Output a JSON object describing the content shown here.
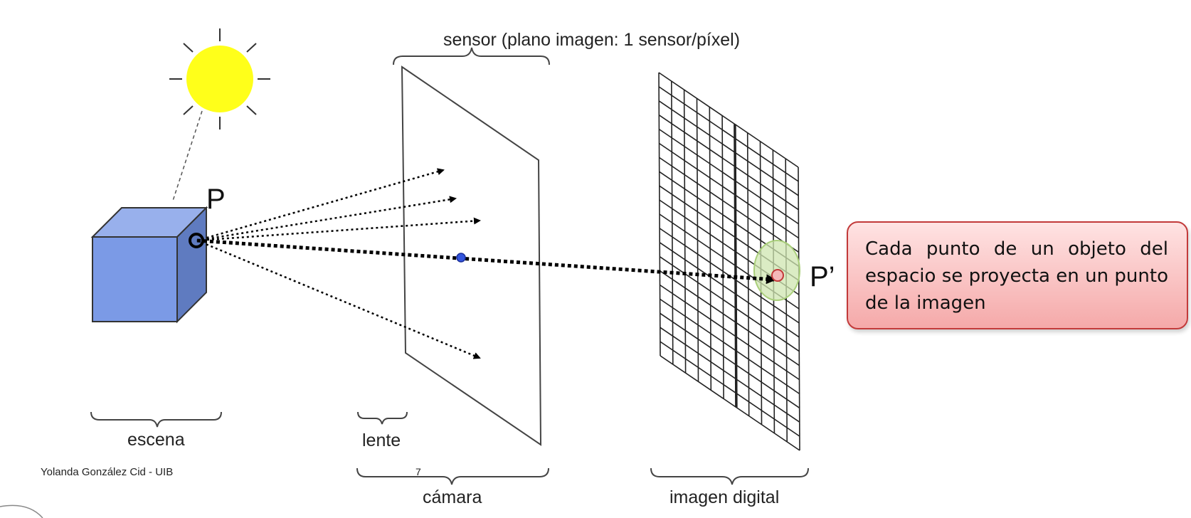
{
  "labels": {
    "sensor": "sensor (plano imagen: 1 sensor/píxel)",
    "point_p": "P",
    "point_p_prime": "P’",
    "escena": "escena",
    "lente": "lente",
    "camara": "cámara",
    "imagen_digital": "imagen digital",
    "author": "Yolanda González Cid - UIB",
    "page_number": "7"
  },
  "callout": {
    "text": "Cada punto de un objeto del espacio se proyecta en un punto de la imagen"
  },
  "colors": {
    "sun": "#ffff1a",
    "cube_front": "#7b9ae6",
    "cube_top": "#98b0ec",
    "cube_side": "#5f7bc0",
    "lens_point": "#3355dd",
    "pixel_highlight": "#cfe6b0",
    "projected_point": "#f4b8b8",
    "callout_border": "#c23a3a"
  }
}
